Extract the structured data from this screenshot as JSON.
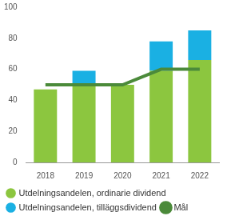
{
  "chart_data": {
    "type": "bar",
    "stacked": true,
    "grid": false,
    "legend": "bottom",
    "categories": [
      "2018",
      "2019",
      "2020",
      "2021",
      "2022"
    ],
    "series": [
      {
        "name": "Utdelningsandelen, ordinarie dividend",
        "color": "#8cc63f",
        "type": "bar",
        "values": [
          47,
          50,
          50,
          59,
          66
        ]
      },
      {
        "name": "Utdelningsandelen, tilläggsdividend",
        "color": "#1ab0e3",
        "type": "bar",
        "values": [
          0,
          9,
          0,
          19,
          19
        ]
      },
      {
        "name": "Mål",
        "color": "#4b8a3a",
        "type": "line",
        "values": [
          50,
          50,
          50,
          60,
          60
        ]
      }
    ],
    "ylim": [
      0,
      100
    ],
    "yticks": [
      0,
      20,
      40,
      60,
      80,
      100
    ]
  }
}
